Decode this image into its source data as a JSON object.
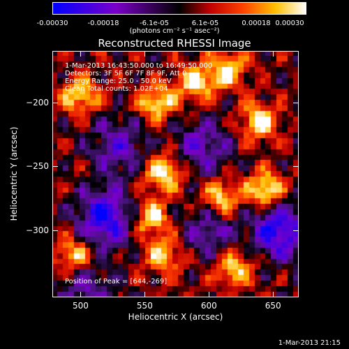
{
  "title": "Reconstructed RHESSI Image",
  "colorbar": {
    "tick_labels": [
      "-0.00030",
      "-0.00018",
      "-6.1e-05",
      "6.1e-05",
      "0.00018",
      "0.00030"
    ],
    "unit": "(photons cm⁻² s⁻¹ asec⁻²)",
    "range": [
      -0.0003,
      0.0003
    ]
  },
  "info_lines": [
    "1-Mar-2013 16:43:50.000 to 16:49:50.000",
    "Detectors: 3F 5F 6F 7F 8F 9F, Att 0",
    "Energy Range: 25.0 - 50.0 keV",
    "Clean    Total counts: 1.02E+04"
  ],
  "peak_text": "Position of Peak = [644,-269]",
  "datestamp": "1-Mar-2013 21:15",
  "chart_data": {
    "type": "heatmap",
    "title": "Reconstructed RHESSI Image",
    "xlabel": "Heliocentric X (arcsec)",
    "ylabel": "Heliocentric Y (arcsec)",
    "xlim": [
      478,
      670
    ],
    "ylim": [
      -352,
      -160
    ],
    "x_ticks": [
      500,
      550,
      600,
      650
    ],
    "y_ticks": [
      -200,
      -250,
      -300
    ],
    "colormap": "blue-purple-black-red-yellow-white",
    "grid": false,
    "peak_position": [
      644,
      -269
    ],
    "bright_regions": [
      {
        "x": 560,
        "y": -200,
        "level": 0.9
      },
      {
        "x": 565,
        "y": -255,
        "level": 1.0
      },
      {
        "x": 555,
        "y": -290,
        "level": 0.85
      },
      {
        "x": 590,
        "y": -185,
        "level": 0.9
      },
      {
        "x": 615,
        "y": -175,
        "level": 0.85
      },
      {
        "x": 500,
        "y": -195,
        "level": 0.8
      },
      {
        "x": 640,
        "y": -215,
        "level": 0.9
      },
      {
        "x": 644,
        "y": -269,
        "level": 1.0
      },
      {
        "x": 610,
        "y": -275,
        "level": 0.85
      },
      {
        "x": 620,
        "y": -330,
        "level": 0.8
      },
      {
        "x": 565,
        "y": -320,
        "level": 0.75
      },
      {
        "x": 495,
        "y": -320,
        "level": 0.8
      }
    ],
    "dark_regions": [
      {
        "x": 520,
        "y": -290,
        "level": -1.0
      },
      {
        "x": 655,
        "y": -300,
        "level": -1.0
      },
      {
        "x": 530,
        "y": -235,
        "level": -0.6
      },
      {
        "x": 595,
        "y": -235,
        "level": -0.6
      },
      {
        "x": 600,
        "y": -300,
        "level": -0.5
      },
      {
        "x": 505,
        "y": -345,
        "level": -0.5
      }
    ]
  }
}
